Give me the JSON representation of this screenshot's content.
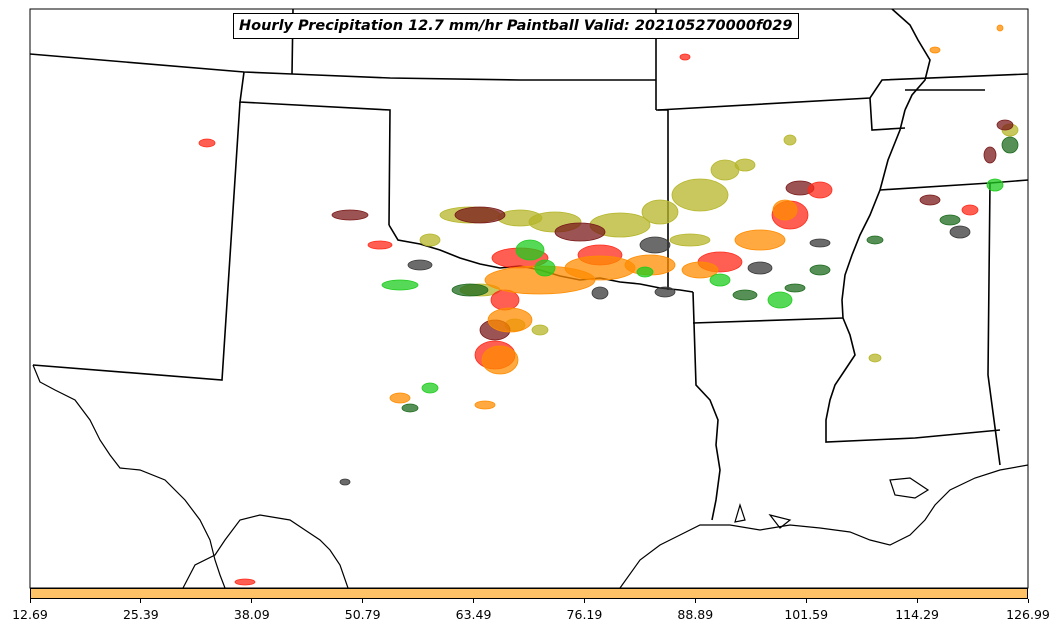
{
  "title": "Hourly Precipitation 12.7 mm/hr Paintball Valid: 202105270000f029",
  "colorbar": {
    "color": "#ffc266",
    "ticks": [
      "12.69",
      "25.39",
      "38.09",
      "50.79",
      "63.49",
      "76.19",
      "88.89",
      "101.59",
      "114.29",
      "126.99"
    ]
  },
  "colors": {
    "olive": "#b5b52a",
    "dark_red": "#7a1a1a",
    "red": "#ff2a1a",
    "orange": "#ff8c00",
    "green": "#1ecc1e",
    "dark_green": "#1e6b1e",
    "gray": "#3a3a3a"
  }
}
